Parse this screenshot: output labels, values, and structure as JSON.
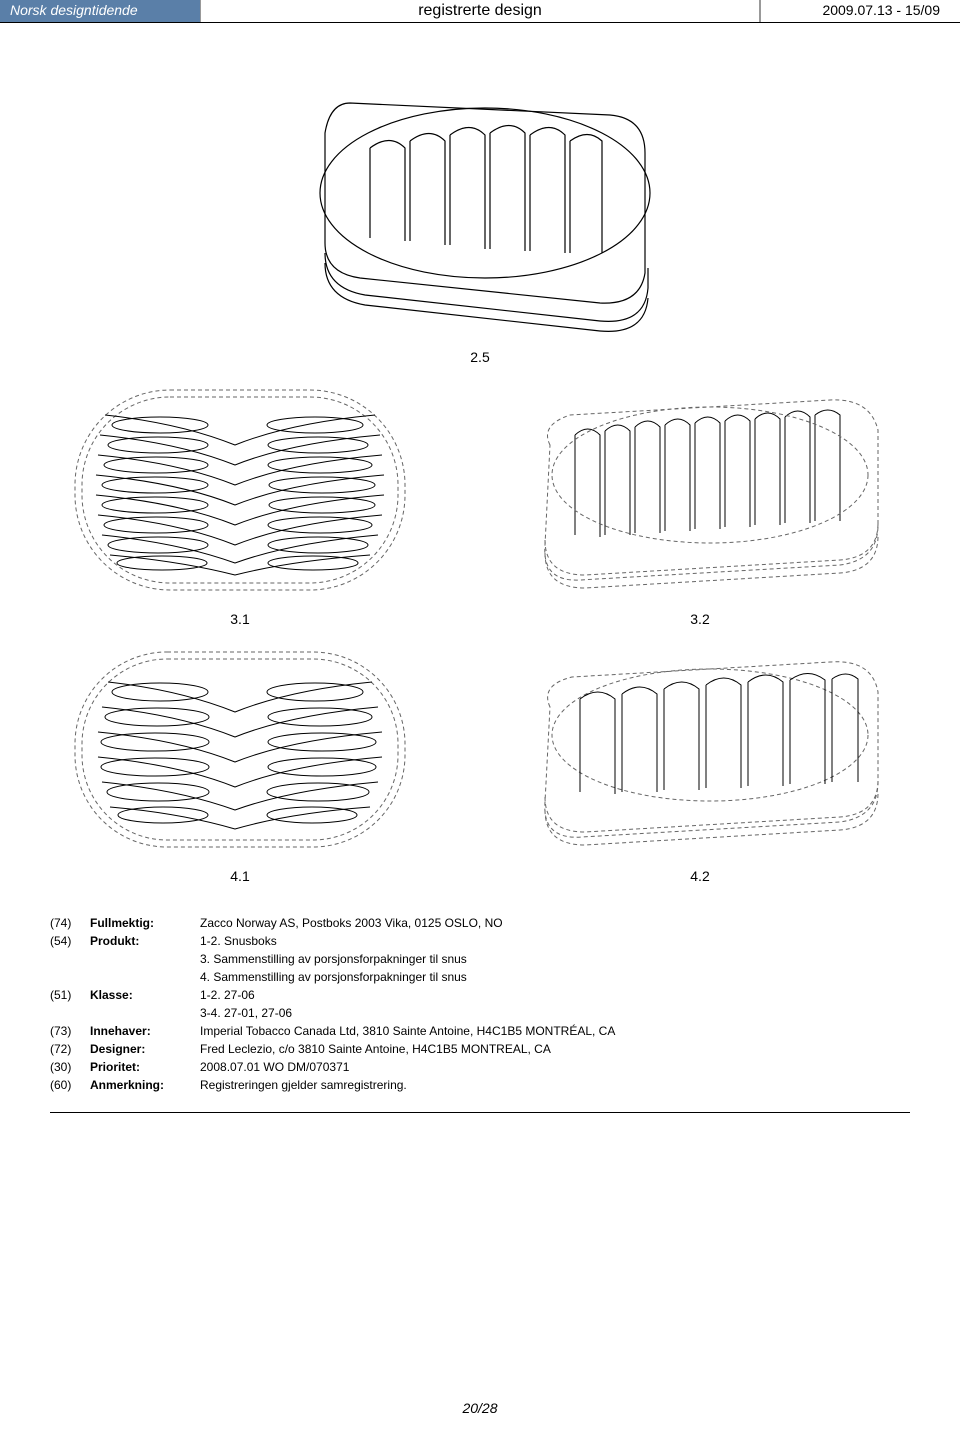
{
  "header": {
    "left": "Norsk designtidende",
    "center": "registrerte design",
    "right": "2009.07.13 - 15/09",
    "left_bg": "#5a7fa8",
    "left_color": "#ffffff"
  },
  "figures": {
    "top": {
      "label": "2.5"
    },
    "row1": [
      {
        "label": "3.1"
      },
      {
        "label": "3.2"
      }
    ],
    "row2": [
      {
        "label": "4.1"
      },
      {
        "label": "4.2"
      }
    ],
    "stroke": "#000000",
    "dash_stroke": "#666666"
  },
  "metadata": {
    "rows": [
      {
        "code": "(74)",
        "label": "Fullmektig:",
        "value": "Zacco Norway AS, Postboks 2003 Vika, 0125 OSLO, NO"
      },
      {
        "code": "(54)",
        "label": "Produkt:",
        "value": "1-2. Snusboks\n3. Sammenstilling av porsjonsforpakninger til snus\n4. Sammenstilling av porsjonsforpakninger til snus"
      },
      {
        "code": "(51)",
        "label": "Klasse:",
        "value": "1-2. 27-06\n3-4. 27-01, 27-06"
      },
      {
        "code": "(73)",
        "label": "Innehaver:",
        "value": "Imperial Tobacco Canada Ltd, 3810 Sainte Antoine, H4C1B5 MONTRÉAL, CA"
      },
      {
        "code": "(72)",
        "label": "Designer:",
        "value": "Fred Leclezio, c/o 3810 Sainte Antoine, H4C1B5 MONTREAL, CA"
      },
      {
        "code": "(30)",
        "label": "Prioritet:",
        "value": "2008.07.01 WO DM/070371"
      },
      {
        "code": "(60)",
        "label": "Anmerkning:",
        "value": "Registreringen gjelder samregistrering."
      }
    ]
  },
  "page_number": "20/28"
}
